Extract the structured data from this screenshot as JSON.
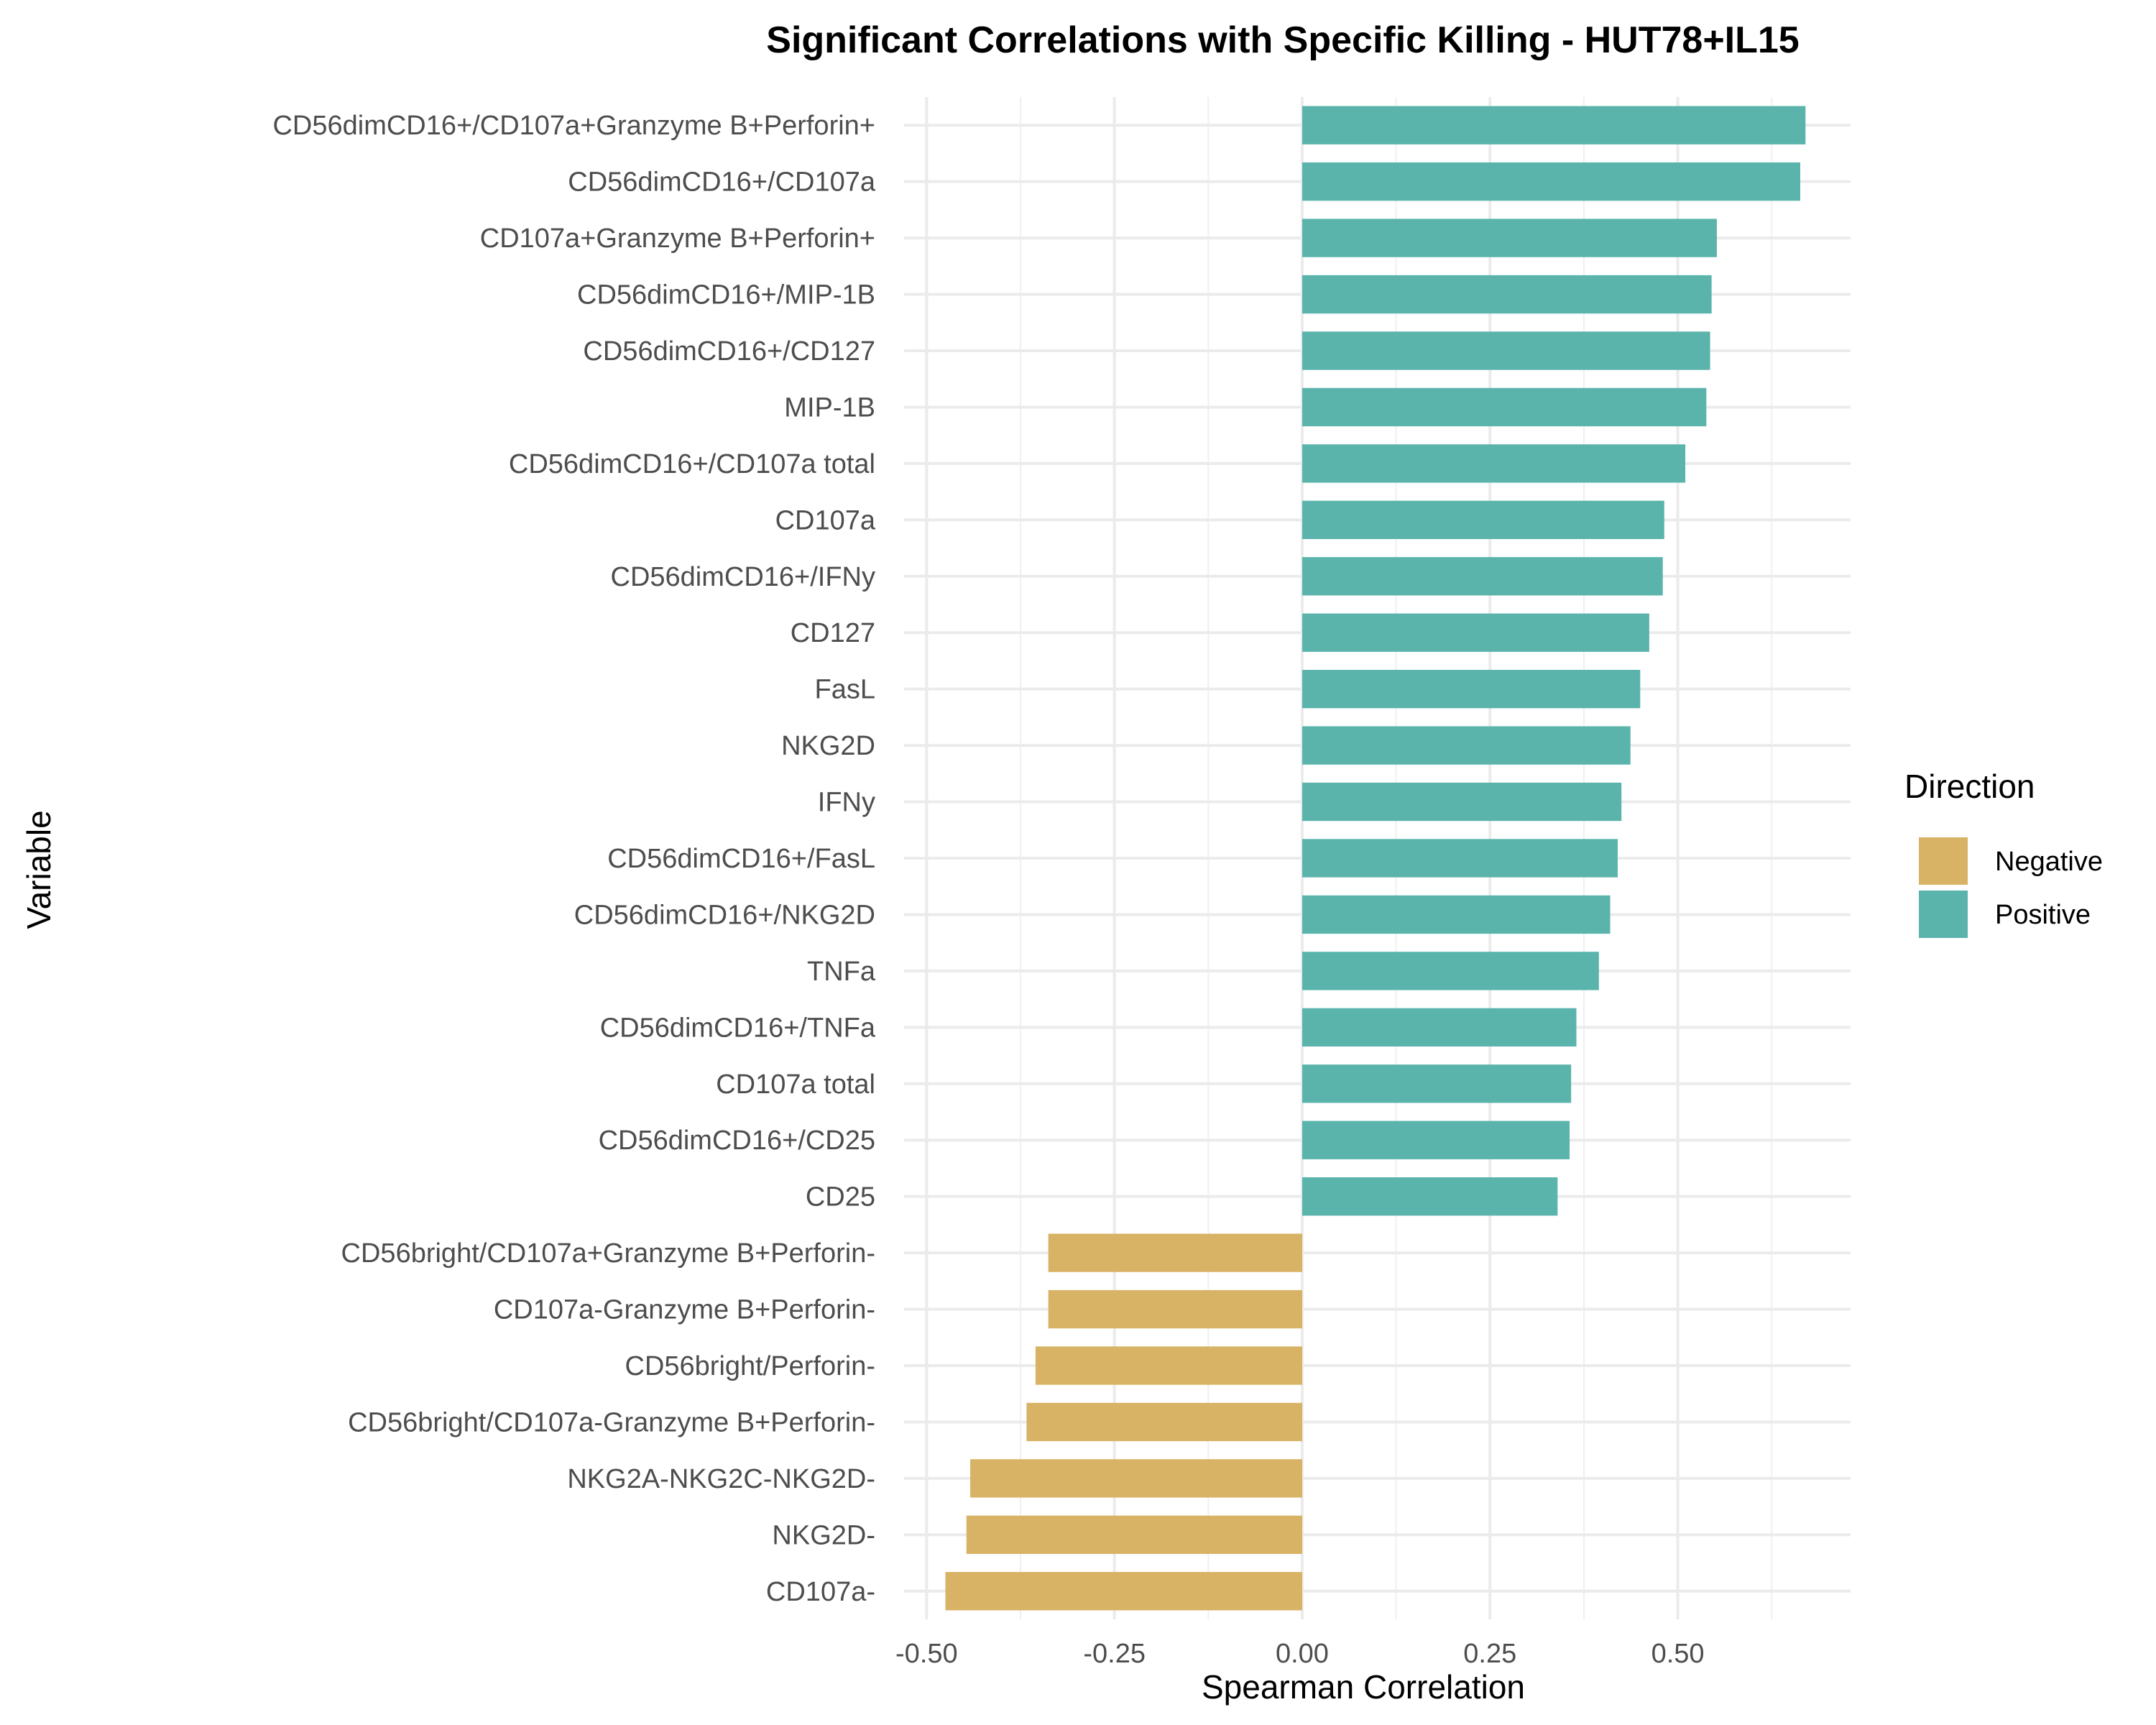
{
  "chart_data": {
    "type": "bar",
    "orientation": "horizontal",
    "title": "Significant Correlations with Specific Killing - HUT78+IL15",
    "xlabel": "Spearman Correlation",
    "ylabel": "Variable",
    "xlim": [
      -0.53,
      0.73
    ],
    "x_ticks": [
      -0.5,
      -0.25,
      0.0,
      0.25,
      0.5
    ],
    "x_tick_labels": [
      "-0.50",
      "-0.25",
      "0.00",
      "0.25",
      "0.50"
    ],
    "grid": true,
    "legend": {
      "title": "Direction",
      "position": "right",
      "entries": [
        {
          "name": "Negative",
          "color": "#D8B365"
        },
        {
          "name": "Positive",
          "color": "#5AB4AC"
        }
      ]
    },
    "bars": [
      {
        "label": "CD56dimCD16+/CD107a+Granzyme B+Perforin+",
        "value": 0.67,
        "direction": "Positive"
      },
      {
        "label": "CD56dimCD16+/CD107a",
        "value": 0.663,
        "direction": "Positive"
      },
      {
        "label": "CD107a+Granzyme B+Perforin+",
        "value": 0.552,
        "direction": "Positive"
      },
      {
        "label": "CD56dimCD16+/MIP-1B",
        "value": 0.545,
        "direction": "Positive"
      },
      {
        "label": "CD56dimCD16+/CD127",
        "value": 0.543,
        "direction": "Positive"
      },
      {
        "label": "MIP-1B",
        "value": 0.538,
        "direction": "Positive"
      },
      {
        "label": "CD56dimCD16+/CD107a total",
        "value": 0.51,
        "direction": "Positive"
      },
      {
        "label": "CD107a",
        "value": 0.482,
        "direction": "Positive"
      },
      {
        "label": "CD56dimCD16+/IFNy",
        "value": 0.48,
        "direction": "Positive"
      },
      {
        "label": "CD127",
        "value": 0.462,
        "direction": "Positive"
      },
      {
        "label": "FasL",
        "value": 0.45,
        "direction": "Positive"
      },
      {
        "label": "NKG2D",
        "value": 0.437,
        "direction": "Positive"
      },
      {
        "label": "IFNy",
        "value": 0.425,
        "direction": "Positive"
      },
      {
        "label": "CD56dimCD16+/FasL",
        "value": 0.42,
        "direction": "Positive"
      },
      {
        "label": "CD56dimCD16+/NKG2D",
        "value": 0.41,
        "direction": "Positive"
      },
      {
        "label": "TNFa",
        "value": 0.395,
        "direction": "Positive"
      },
      {
        "label": "CD56dimCD16+/TNFa",
        "value": 0.365,
        "direction": "Positive"
      },
      {
        "label": "CD107a total",
        "value": 0.358,
        "direction": "Positive"
      },
      {
        "label": "CD56dimCD16+/CD25",
        "value": 0.356,
        "direction": "Positive"
      },
      {
        "label": "CD25",
        "value": 0.34,
        "direction": "Positive"
      },
      {
        "label": "CD56bright/CD107a+Granzyme B+Perforin-",
        "value": -0.338,
        "direction": "Negative"
      },
      {
        "label": "CD107a-Granzyme B+Perforin-",
        "value": -0.338,
        "direction": "Negative"
      },
      {
        "label": "CD56bright/Perforin-",
        "value": -0.355,
        "direction": "Negative"
      },
      {
        "label": "CD56bright/CD107a-Granzyme B+Perforin-",
        "value": -0.367,
        "direction": "Negative"
      },
      {
        "label": "NKG2A-NKG2C-NKG2D-",
        "value": -0.442,
        "direction": "Negative"
      },
      {
        "label": "NKG2D-",
        "value": -0.447,
        "direction": "Negative"
      },
      {
        "label": "CD107a-",
        "value": -0.475,
        "direction": "Negative"
      }
    ]
  }
}
